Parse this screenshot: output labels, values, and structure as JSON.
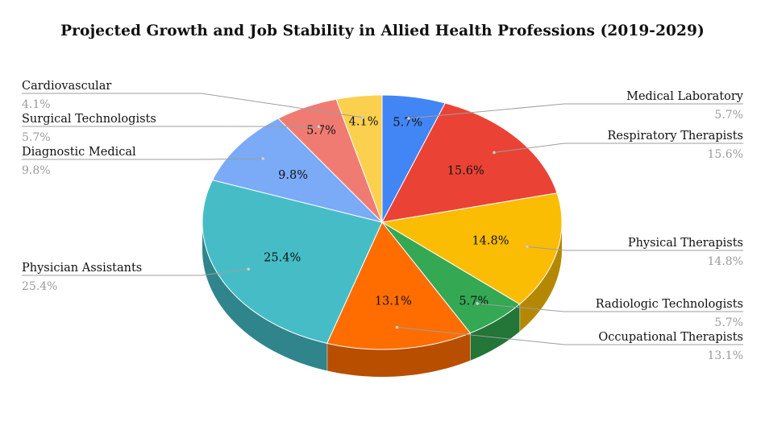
{
  "chart_data": {
    "type": "pie",
    "title": "Projected Growth and Job Stability in Allied Health Professions (2019-2029)",
    "slices": [
      {
        "label": "Medical Laboratory",
        "value": 5.7,
        "display": "5.7%",
        "color": "#4285f4",
        "side_color": "#2c5bb0"
      },
      {
        "label": "Respiratory Therapists",
        "value": 15.6,
        "display": "15.6%",
        "color": "#ea4335",
        "side_color": "#a82d23"
      },
      {
        "label": "Physical Therapists",
        "value": 14.8,
        "display": "14.8%",
        "color": "#fbbc04",
        "side_color": "#b58803"
      },
      {
        "label": "Radiologic Technologists",
        "value": 5.7,
        "display": "5.7%",
        "color": "#34a853",
        "side_color": "#237538"
      },
      {
        "label": "Occupational Therapists",
        "value": 13.1,
        "display": "13.1%",
        "color": "#ff6d01",
        "side_color": "#b84e00"
      },
      {
        "label": "Physician Assistants",
        "value": 25.4,
        "display": "25.4%",
        "color": "#46bdc6",
        "side_color": "#2f858b"
      },
      {
        "label": "Diagnostic Medical",
        "value": 9.8,
        "display": "9.8%",
        "color": "#7baaf7",
        "side_color": "#5276b3"
      },
      {
        "label": "Surgical Technologists",
        "value": 5.7,
        "display": "5.7%",
        "color": "#f07b72",
        "side_color": "#ad554f"
      },
      {
        "label": "Cardiovascular",
        "value": 4.1,
        "display": "4.1%",
        "color": "#fcd04f",
        "side_color": "#b89436"
      }
    ],
    "legend": "callout labels around pie",
    "style": "3d"
  }
}
